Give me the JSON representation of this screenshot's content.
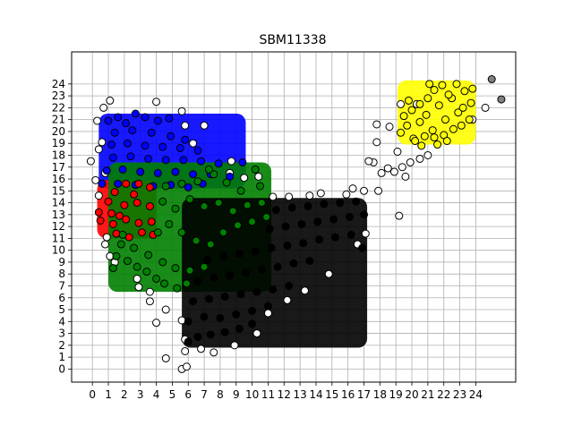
{
  "chart_data": {
    "type": "scatter",
    "title": "SBM11338",
    "xlabel": "",
    "ylabel": "",
    "xlim": [
      -1.3,
      26.5
    ],
    "ylim": [
      -1.1,
      26.7
    ],
    "xticks": [
      0,
      1,
      2,
      3,
      4,
      5,
      6,
      7,
      8,
      9,
      10,
      11,
      12,
      13,
      14,
      15,
      16,
      17,
      18,
      19,
      20,
      21,
      22,
      23,
      24
    ],
    "yticks": [
      0,
      1,
      2,
      3,
      4,
      5,
      6,
      7,
      8,
      9,
      10,
      11,
      12,
      13,
      14,
      15,
      16,
      17,
      18,
      19,
      20,
      21,
      22,
      23,
      24
    ],
    "grid": true,
    "marker_edge_color": "#000000",
    "series": [
      {
        "color": "#ffffff",
        "points": [
          [
            -0.1,
            17.5
          ],
          [
            0.3,
            20.9
          ],
          [
            0.4,
            18.5
          ],
          [
            0.6,
            19.1
          ],
          [
            0.7,
            22.0
          ],
          [
            1.1,
            22.6
          ],
          [
            0.8,
            16.5
          ],
          [
            0.4,
            14.6
          ],
          [
            0.2,
            15.9
          ],
          [
            0.9,
            11.1
          ],
          [
            0.8,
            10.5
          ],
          [
            1.1,
            9.5
          ],
          [
            1.4,
            9.0
          ],
          [
            2.8,
            7.6
          ],
          [
            2.9,
            6.9
          ],
          [
            3.6,
            6.5
          ],
          [
            3.6,
            5.7
          ],
          [
            4.0,
            3.9
          ],
          [
            4.6,
            5.0
          ],
          [
            4.6,
            0.9
          ],
          [
            5.6,
            0.0
          ],
          [
            5.9,
            0.2
          ],
          [
            5.8,
            1.5
          ],
          [
            5.8,
            2.5
          ],
          [
            5.6,
            4.1
          ],
          [
            6.8,
            1.7
          ],
          [
            7.6,
            1.4
          ],
          [
            8.9,
            2.0
          ],
          [
            10.3,
            3.0
          ],
          [
            11.0,
            4.7
          ],
          [
            12.2,
            5.8
          ],
          [
            13.3,
            6.6
          ],
          [
            14.8,
            8.0
          ],
          [
            16.6,
            10.5
          ],
          [
            17.1,
            11.4
          ],
          [
            15.9,
            14.7
          ],
          [
            16.3,
            15.2
          ],
          [
            17.0,
            15.0
          ],
          [
            17.9,
            15.0
          ],
          [
            18.1,
            16.5
          ],
          [
            17.6,
            17.4
          ],
          [
            17.3,
            17.5
          ],
          [
            17.8,
            19.1
          ],
          [
            17.8,
            20.6
          ],
          [
            18.6,
            20.4
          ],
          [
            19.1,
            18.3
          ],
          [
            19.4,
            17.0
          ],
          [
            19.9,
            17.4
          ],
          [
            20.5,
            17.7
          ],
          [
            21.0,
            18.0
          ],
          [
            19.2,
            12.9
          ],
          [
            18.5,
            16.9
          ],
          [
            18.9,
            16.6
          ],
          [
            19.6,
            16.2
          ],
          [
            19.3,
            22.3
          ],
          [
            20.3,
            22.3
          ],
          [
            24.6,
            22.0
          ],
          [
            23.8,
            21.0
          ],
          [
            11.3,
            14.5
          ],
          [
            12.3,
            14.5
          ],
          [
            13.6,
            14.6
          ],
          [
            14.3,
            14.8
          ],
          [
            10.4,
            16.2
          ],
          [
            8.6,
            16.5
          ],
          [
            8.7,
            17.5
          ],
          [
            9.5,
            16.1
          ],
          [
            5.8,
            20.5
          ],
          [
            4.0,
            22.5
          ],
          [
            5.6,
            21.7
          ],
          [
            6.3,
            19.0
          ],
          [
            7.0,
            20.5
          ]
        ]
      },
      {
        "color": "#0000ff",
        "region": {
          "x": [
            0.4,
            9.6
          ],
          "y": [
            15.2,
            21.5
          ]
        },
        "points": [
          [
            1.0,
            20.9
          ],
          [
            1.6,
            21.2
          ],
          [
            2.1,
            20.7
          ],
          [
            2.7,
            21.5
          ],
          [
            3.3,
            21.2
          ],
          [
            4.1,
            20.9
          ],
          [
            4.8,
            21.1
          ],
          [
            1.4,
            19.9
          ],
          [
            2.5,
            20.1
          ],
          [
            3.7,
            19.9
          ],
          [
            4.9,
            19.6
          ],
          [
            5.8,
            19.3
          ],
          [
            1.2,
            18.9
          ],
          [
            2.2,
            19.0
          ],
          [
            3.3,
            18.8
          ],
          [
            4.4,
            18.7
          ],
          [
            5.5,
            18.6
          ],
          [
            6.6,
            18.4
          ],
          [
            1.3,
            17.8
          ],
          [
            2.4,
            17.9
          ],
          [
            3.5,
            17.7
          ],
          [
            4.6,
            17.6
          ],
          [
            5.7,
            17.6
          ],
          [
            6.8,
            17.5
          ],
          [
            7.9,
            17.3
          ],
          [
            9.4,
            17.4
          ],
          [
            0.9,
            16.7
          ],
          [
            1.9,
            16.8
          ],
          [
            3.0,
            16.6
          ],
          [
            4.1,
            16.5
          ],
          [
            5.2,
            16.6
          ],
          [
            6.3,
            16.4
          ],
          [
            7.4,
            16.4
          ],
          [
            8.6,
            16.2
          ],
          [
            0.6,
            15.6
          ],
          [
            1.6,
            15.6
          ],
          [
            2.7,
            15.5
          ],
          [
            3.8,
            15.4
          ],
          [
            4.9,
            15.5
          ],
          [
            6.0,
            15.3
          ],
          [
            6.9,
            15.6
          ]
        ]
      },
      {
        "color": "#ff0000",
        "region": {
          "x": [
            0.3,
            4.0
          ],
          "y": [
            11.0,
            15.9
          ]
        },
        "points": [
          [
            0.4,
            13.2
          ],
          [
            0.5,
            12.5
          ],
          [
            1.0,
            14.1
          ],
          [
            1.4,
            14.9
          ],
          [
            2.1,
            15.6
          ],
          [
            2.9,
            15.6
          ],
          [
            3.6,
            15.3
          ],
          [
            1.2,
            13.1
          ],
          [
            2.0,
            13.8
          ],
          [
            2.8,
            14.0
          ],
          [
            3.6,
            13.7
          ],
          [
            1.3,
            12.2
          ],
          [
            2.1,
            12.6
          ],
          [
            2.9,
            12.3
          ],
          [
            3.7,
            12.4
          ],
          [
            1.5,
            11.4
          ],
          [
            2.3,
            11.1
          ],
          [
            3.1,
            11.5
          ],
          [
            3.8,
            11.3
          ],
          [
            2.6,
            14.7
          ],
          [
            1.7,
            12.9
          ]
        ]
      },
      {
        "color": "#008000",
        "region": {
          "x": [
            1.0,
            11.2
          ],
          "y": [
            6.5,
            17.4
          ]
        },
        "points": [
          [
            1.3,
            8.5
          ],
          [
            1.5,
            9.5
          ],
          [
            1.8,
            10.5
          ],
          [
            2.2,
            9.1
          ],
          [
            2.8,
            8.6
          ],
          [
            3.4,
            8.2
          ],
          [
            4.0,
            7.6
          ],
          [
            4.5,
            7.2
          ],
          [
            5.3,
            6.8
          ],
          [
            5.9,
            7.2
          ],
          [
            1.9,
            11.3
          ],
          [
            2.6,
            10.2
          ],
          [
            3.5,
            9.6
          ],
          [
            4.4,
            9.0
          ],
          [
            5.2,
            8.5
          ],
          [
            6.1,
            8.3
          ],
          [
            7.0,
            8.6
          ],
          [
            4.1,
            11.5
          ],
          [
            4.8,
            12.2
          ],
          [
            5.6,
            11.5
          ],
          [
            6.5,
            10.8
          ],
          [
            7.4,
            10.5
          ],
          [
            8.2,
            11.5
          ],
          [
            9.1,
            12.1
          ],
          [
            10.0,
            12.4
          ],
          [
            10.9,
            12.8
          ],
          [
            4.4,
            14.1
          ],
          [
            5.2,
            13.5
          ],
          [
            6.1,
            14.3
          ],
          [
            7.0,
            13.7
          ],
          [
            7.9,
            14.0
          ],
          [
            8.8,
            13.3
          ],
          [
            9.7,
            13.8
          ],
          [
            10.6,
            14.0
          ],
          [
            4.6,
            15.4
          ],
          [
            5.6,
            15.6
          ],
          [
            6.6,
            15.8
          ],
          [
            7.6,
            16.4
          ],
          [
            8.4,
            15.7
          ],
          [
            9.3,
            15.0
          ],
          [
            10.2,
            16.8
          ],
          [
            10.5,
            15.4
          ],
          [
            7.3,
            16.8
          ]
        ]
      },
      {
        "color": "#000000",
        "region": {
          "x": [
            5.6,
            17.2
          ],
          "y": [
            1.8,
            14.4
          ]
        },
        "points": [
          [
            6.0,
            2.3
          ],
          [
            6.6,
            2.7
          ],
          [
            7.4,
            2.9
          ],
          [
            8.3,
            3.1
          ],
          [
            9.2,
            3.4
          ],
          [
            10.0,
            3.8
          ],
          [
            6.0,
            4.0
          ],
          [
            7.0,
            4.4
          ],
          [
            8.0,
            4.3
          ],
          [
            9.0,
            4.6
          ],
          [
            10.0,
            4.9
          ],
          [
            11.0,
            5.3
          ],
          [
            6.3,
            5.7
          ],
          [
            7.3,
            5.9
          ],
          [
            8.3,
            6.1
          ],
          [
            9.3,
            6.3
          ],
          [
            10.3,
            6.5
          ],
          [
            11.3,
            6.7
          ],
          [
            12.3,
            7.0
          ],
          [
            6.6,
            7.4
          ],
          [
            7.6,
            7.7
          ],
          [
            8.6,
            7.9
          ],
          [
            9.6,
            8.1
          ],
          [
            10.6,
            8.4
          ],
          [
            11.6,
            8.6
          ],
          [
            12.6,
            8.9
          ],
          [
            13.6,
            9.1
          ],
          [
            7.2,
            9.2
          ],
          [
            8.2,
            9.5
          ],
          [
            9.2,
            9.7
          ],
          [
            10.2,
            9.9
          ],
          [
            11.2,
            10.2
          ],
          [
            12.2,
            10.4
          ],
          [
            13.2,
            10.6
          ],
          [
            14.2,
            10.9
          ],
          [
            15.2,
            11.1
          ],
          [
            16.2,
            11.3
          ],
          [
            11.1,
            11.8
          ],
          [
            12.1,
            12.0
          ],
          [
            13.1,
            12.2
          ],
          [
            14.1,
            12.4
          ],
          [
            15.1,
            12.6
          ],
          [
            16.1,
            12.8
          ],
          [
            17.0,
            13.0
          ],
          [
            11.5,
            13.4
          ],
          [
            12.5,
            13.6
          ],
          [
            13.5,
            13.7
          ],
          [
            14.5,
            13.9
          ],
          [
            15.5,
            14.0
          ],
          [
            16.5,
            14.1
          ],
          [
            16.9,
            10.2
          ]
        ]
      },
      {
        "color": "#ffff00",
        "region": {
          "x": [
            19.1,
            24.0
          ],
          "y": [
            18.9,
            24.3
          ]
        },
        "points": [
          [
            19.3,
            19.9
          ],
          [
            19.7,
            20.5
          ],
          [
            20.1,
            19.4
          ],
          [
            20.5,
            20.8
          ],
          [
            20.9,
            21.4
          ],
          [
            21.3,
            20.1
          ],
          [
            21.7,
            22.2
          ],
          [
            22.1,
            21.0
          ],
          [
            22.5,
            22.8
          ],
          [
            22.9,
            21.6
          ],
          [
            23.3,
            23.4
          ],
          [
            23.7,
            22.4
          ],
          [
            19.5,
            21.3
          ],
          [
            20.0,
            21.8
          ],
          [
            20.5,
            22.3
          ],
          [
            21.0,
            22.8
          ],
          [
            21.4,
            23.5
          ],
          [
            21.9,
            23.9
          ],
          [
            22.3,
            23.1
          ],
          [
            22.8,
            24.0
          ],
          [
            23.2,
            22.0
          ],
          [
            23.6,
            21.0
          ],
          [
            20.2,
            19.2
          ],
          [
            20.8,
            19.6
          ],
          [
            21.4,
            19.5
          ],
          [
            22.0,
            19.7
          ],
          [
            22.6,
            20.2
          ],
          [
            23.1,
            20.5
          ],
          [
            19.8,
            22.6
          ],
          [
            21.1,
            24.0
          ],
          [
            23.8,
            23.6
          ],
          [
            20.6,
            18.8
          ],
          [
            21.6,
            18.9
          ],
          [
            22.2,
            19.2
          ]
        ]
      },
      {
        "color": "#808080",
        "points": [
          [
            25.0,
            24.4
          ],
          [
            25.6,
            22.7
          ]
        ]
      }
    ]
  }
}
